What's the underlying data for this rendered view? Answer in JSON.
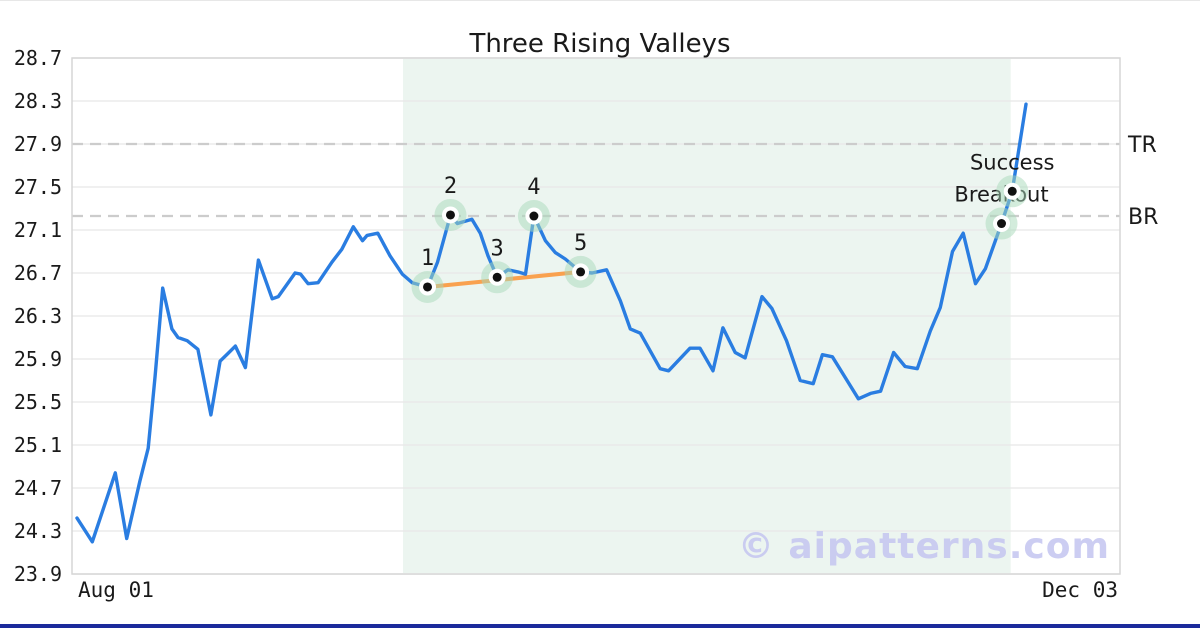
{
  "page": {
    "title": "Three Rising Valleys",
    "watermark": "© aipatterns.com"
  },
  "colors": {
    "price_line": "#2a7de1",
    "trendline_orange": "#f9a14f",
    "pattern_region_mint": "#ecf5f0",
    "marker_halo_green": "#a8d9b9",
    "marker_dot": "#111111",
    "reference_dash_gray": "#cccccc",
    "gridline_gray": "#e8e8e8",
    "plot_border_gray": "#d6d6d6",
    "watermark_lavender": "#c7c8f1",
    "bottom_accent_bar": "#1b2a9b",
    "text_dark": "#1a1a1a"
  },
  "chart_data": {
    "type": "line",
    "title": "Three Rising Valleys",
    "x_axis": {
      "tick_labels": [
        "Aug 01",
        "Dec 03"
      ],
      "unit": "date",
      "span_days": 124
    },
    "y_axis": {
      "ticks": [
        28.7,
        28.3,
        27.9,
        27.5,
        27.1,
        26.7,
        26.3,
        25.9,
        25.5,
        25.1,
        24.7,
        24.3,
        23.9
      ],
      "range": [
        23.9,
        28.7
      ],
      "grid": true
    },
    "legend": false,
    "reference_lines": [
      {
        "label": "TR",
        "value": 27.9
      },
      {
        "label": "BR",
        "value": 27.23
      }
    ],
    "pattern_region": {
      "from_day": 42.6,
      "to_day": 122.0
    },
    "trendline": {
      "from": [
        45.8,
        26.57
      ],
      "to": [
        65.8,
        26.71
      ]
    },
    "series": [
      {
        "name": "price",
        "points": [
          [
            0,
            24.42
          ],
          [
            2,
            24.2
          ],
          [
            5,
            24.84
          ],
          [
            6.5,
            24.23
          ],
          [
            8.2,
            24.76
          ],
          [
            9.3,
            25.07
          ],
          [
            10.2,
            25.74
          ],
          [
            11.2,
            26.56
          ],
          [
            12.4,
            26.18
          ],
          [
            13.2,
            26.1
          ],
          [
            14.4,
            26.07
          ],
          [
            15.8,
            25.99
          ],
          [
            17.5,
            25.38
          ],
          [
            18.7,
            25.88
          ],
          [
            19.7,
            25.95
          ],
          [
            20.7,
            26.02
          ],
          [
            22,
            25.82
          ],
          [
            23.7,
            26.82
          ],
          [
            25.5,
            26.46
          ],
          [
            26.3,
            26.48
          ],
          [
            28.5,
            26.7
          ],
          [
            29.2,
            26.69
          ],
          [
            30.2,
            26.6
          ],
          [
            31.5,
            26.61
          ],
          [
            33.3,
            26.8
          ],
          [
            34.6,
            26.92
          ],
          [
            36.1,
            27.13
          ],
          [
            37.3,
            27.0
          ],
          [
            37.9,
            27.05
          ],
          [
            39.3,
            27.07
          ],
          [
            40.9,
            26.86
          ],
          [
            42.5,
            26.69
          ],
          [
            43.8,
            26.61
          ],
          [
            45.8,
            26.57
          ],
          [
            47.1,
            26.8
          ],
          [
            48.8,
            27.24
          ],
          [
            49.7,
            27.16
          ],
          [
            51.6,
            27.2
          ],
          [
            52.7,
            27.07
          ],
          [
            53.7,
            26.86
          ],
          [
            54.9,
            26.66
          ],
          [
            56.3,
            26.73
          ],
          [
            57.6,
            26.71
          ],
          [
            58.6,
            26.69
          ],
          [
            59.7,
            27.23
          ],
          [
            61.2,
            27.0
          ],
          [
            62.5,
            26.89
          ],
          [
            63.8,
            26.83
          ],
          [
            65.8,
            26.71
          ],
          [
            67.3,
            26.7
          ],
          [
            69.2,
            26.73
          ],
          [
            71,
            26.44
          ],
          [
            72.3,
            26.18
          ],
          [
            73.6,
            26.14
          ],
          [
            76.2,
            25.81
          ],
          [
            77.3,
            25.79
          ],
          [
            80.1,
            26.0
          ],
          [
            81.4,
            26.0
          ],
          [
            83.1,
            25.79
          ],
          [
            84.4,
            26.19
          ],
          [
            86,
            25.96
          ],
          [
            87.3,
            25.91
          ],
          [
            89.5,
            26.48
          ],
          [
            90.8,
            26.37
          ],
          [
            92.7,
            26.07
          ],
          [
            94.5,
            25.7
          ],
          [
            96.2,
            25.67
          ],
          [
            97.4,
            25.94
          ],
          [
            98.7,
            25.92
          ],
          [
            102.1,
            25.53
          ],
          [
            103.7,
            25.58
          ],
          [
            105,
            25.6
          ],
          [
            106.7,
            25.96
          ],
          [
            108.2,
            25.83
          ],
          [
            109.8,
            25.81
          ],
          [
            111.5,
            26.16
          ],
          [
            112.8,
            26.38
          ],
          [
            114.4,
            26.9
          ],
          [
            115.8,
            27.07
          ],
          [
            117.4,
            26.6
          ],
          [
            118.7,
            26.74
          ],
          [
            120.8,
            27.16
          ],
          [
            122.2,
            27.46
          ],
          [
            124,
            28.27
          ]
        ]
      }
    ],
    "markers": [
      {
        "label": "1",
        "day": 45.8,
        "value": 26.57
      },
      {
        "label": "2",
        "day": 48.8,
        "value": 27.24
      },
      {
        "label": "3",
        "day": 54.9,
        "value": 26.66
      },
      {
        "label": "4",
        "day": 59.7,
        "value": 27.23
      },
      {
        "label": "5",
        "day": 65.8,
        "value": 26.71
      },
      {
        "label": "Breakout",
        "day": 120.8,
        "value": 27.16
      },
      {
        "label": "Success",
        "day": 122.2,
        "value": 27.46
      }
    ]
  }
}
